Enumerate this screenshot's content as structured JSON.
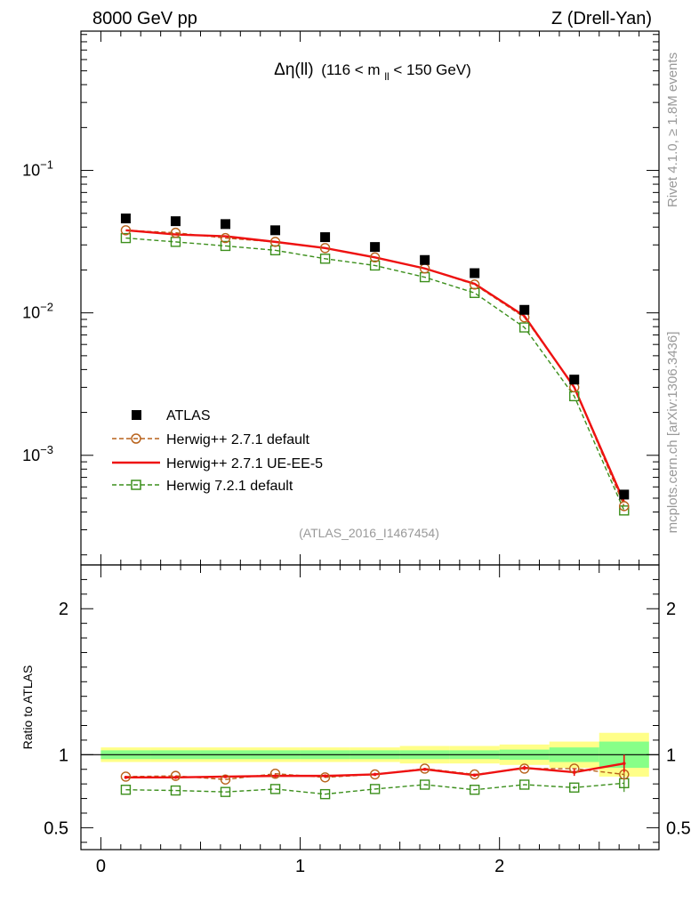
{
  "header": {
    "left": "8000 GeV pp",
    "right": "Z (Drell-Yan)"
  },
  "main_title": {
    "var": "Δη(ll)",
    "range_pre": "(116 < m",
    "range_sub": "ll",
    "range_post": " < 150 GeV)"
  },
  "side": {
    "rivet": "Rivet 4.1.0, ≥ 1.8M events",
    "source": "mcplots.cern.ch [arXiv:1306.3436]"
  },
  "analysis_id": "(ATLAS_2016_I1467454)",
  "legend": {
    "atlas": "ATLAS",
    "h271_default": "Herwig++ 2.7.1 default",
    "h271_ue": "Herwig++ 2.7.1 UE-EE-5",
    "h721_default": "Herwig 7.2.1 default"
  },
  "axes": {
    "ratio_label": "Ratio to ATLAS",
    "upper_ticks": [
      {
        "base": "10",
        "exp": "−1"
      },
      {
        "base": "10",
        "exp": "−2"
      },
      {
        "base": "10",
        "exp": "−3"
      }
    ],
    "ratio_ticks": [
      "2",
      "1",
      "0.5"
    ],
    "x_ticks": [
      "0",
      "1",
      "2"
    ]
  },
  "colors": {
    "data": "#000000",
    "h271_default": "#b8621b",
    "h271_ue": "#ee1111",
    "h721_default": "#3c8f1c",
    "band_yellow": "#ffff88",
    "band_green": "#88ff88"
  },
  "chart_data": {
    "type": "scatter",
    "x": [
      0.125,
      0.375,
      0.625,
      0.875,
      1.125,
      1.375,
      1.625,
      1.875,
      2.125,
      2.375,
      2.625
    ],
    "bin_edges": [
      0,
      0.25,
      0.5,
      0.75,
      1.0,
      1.25,
      1.5,
      1.75,
      2.0,
      2.25,
      2.5,
      2.75
    ],
    "xlim": [
      -0.1,
      2.8
    ],
    "upper": {
      "yscale": "log",
      "ylim": [
        0.00017,
        0.95
      ],
      "series": [
        {
          "name": "ATLAS",
          "values": [
            0.046,
            0.044,
            0.042,
            0.038,
            0.034,
            0.029,
            0.0235,
            0.019,
            0.0105,
            0.0034,
            0.00053
          ]
        },
        {
          "name": "Herwig++ 2.7.1 default",
          "values": [
            0.038,
            0.0365,
            0.0335,
            0.0315,
            0.0285,
            0.0245,
            0.0205,
            0.0158,
            0.0093,
            0.003,
            0.00044
          ]
        },
        {
          "name": "Herwig++ 2.7.1 UE-EE-5",
          "values": [
            0.038,
            0.0355,
            0.0345,
            0.0315,
            0.0285,
            0.0245,
            0.0205,
            0.016,
            0.0095,
            0.003,
            0.00047
          ]
        },
        {
          "name": "Herwig 7.2.1 default",
          "values": [
            0.0335,
            0.0315,
            0.0295,
            0.0275,
            0.024,
            0.0215,
            0.0178,
            0.0138,
            0.0079,
            0.0026,
            0.00041
          ]
        }
      ]
    },
    "ratio": {
      "ylabel": "Ratio to ATLAS",
      "ylim": [
        0.35,
        2.3
      ],
      "reference": 1,
      "series": [
        {
          "name": "Herwig++ 2.7.1 default",
          "values": [
            0.85,
            0.855,
            0.83,
            0.87,
            0.845,
            0.865,
            0.905,
            0.865,
            0.905,
            0.905,
            0.865
          ],
          "errors": [
            0,
            0,
            0,
            0,
            0,
            0,
            0,
            0,
            0,
            0,
            0.02
          ]
        },
        {
          "name": "Herwig++ 2.7.1 UE-EE-5",
          "values": [
            0.845,
            0.845,
            0.85,
            0.855,
            0.855,
            0.865,
            0.9,
            0.86,
            0.91,
            0.88,
            0.94
          ],
          "errors": [
            0,
            0,
            0,
            0.01,
            0.01,
            0.01,
            0.01,
            0.01,
            0.015,
            0.025,
            0.06
          ]
        },
        {
          "name": "Herwig 7.2.1 default",
          "values": [
            0.76,
            0.755,
            0.745,
            0.765,
            0.73,
            0.765,
            0.795,
            0.76,
            0.795,
            0.775,
            0.805
          ],
          "errors": [
            0,
            0,
            0,
            0,
            0,
            0,
            0,
            0,
            0,
            0.01,
            0.06
          ]
        }
      ],
      "band_yellow": [
        0.05,
        0.05,
        0.05,
        0.05,
        0.05,
        0.05,
        0.06,
        0.06,
        0.07,
        0.09,
        0.15
      ],
      "band_green": [
        0.03,
        0.03,
        0.03,
        0.03,
        0.03,
        0.03,
        0.03,
        0.03,
        0.035,
        0.05,
        0.09
      ]
    }
  }
}
